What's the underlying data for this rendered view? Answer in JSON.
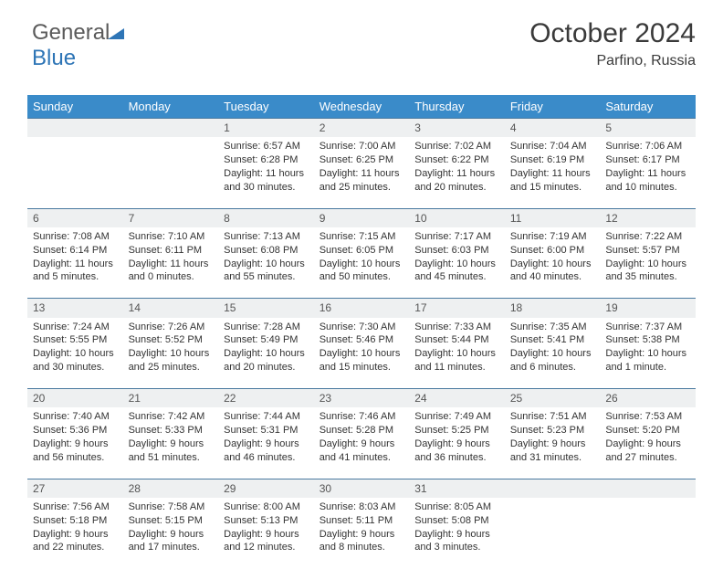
{
  "brand": {
    "part1": "General",
    "part2": "Blue"
  },
  "header": {
    "month_year": "October 2024",
    "location": "Parfino, Russia"
  },
  "colors": {
    "header_bg": "#3a8bc9",
    "header_text": "#ffffff",
    "daynum_bg": "#eef0f1",
    "border": "#4a7aa0",
    "text": "#333333",
    "background": "#ffffff"
  },
  "day_headers": [
    "Sunday",
    "Monday",
    "Tuesday",
    "Wednesday",
    "Thursday",
    "Friday",
    "Saturday"
  ],
  "weeks": [
    [
      {
        "day": "",
        "lines": []
      },
      {
        "day": "",
        "lines": []
      },
      {
        "day": "1",
        "lines": [
          "Sunrise: 6:57 AM",
          "Sunset: 6:28 PM",
          "Daylight: 11 hours",
          "and 30 minutes."
        ]
      },
      {
        "day": "2",
        "lines": [
          "Sunrise: 7:00 AM",
          "Sunset: 6:25 PM",
          "Daylight: 11 hours",
          "and 25 minutes."
        ]
      },
      {
        "day": "3",
        "lines": [
          "Sunrise: 7:02 AM",
          "Sunset: 6:22 PM",
          "Daylight: 11 hours",
          "and 20 minutes."
        ]
      },
      {
        "day": "4",
        "lines": [
          "Sunrise: 7:04 AM",
          "Sunset: 6:19 PM",
          "Daylight: 11 hours",
          "and 15 minutes."
        ]
      },
      {
        "day": "5",
        "lines": [
          "Sunrise: 7:06 AM",
          "Sunset: 6:17 PM",
          "Daylight: 11 hours",
          "and 10 minutes."
        ]
      }
    ],
    [
      {
        "day": "6",
        "lines": [
          "Sunrise: 7:08 AM",
          "Sunset: 6:14 PM",
          "Daylight: 11 hours",
          "and 5 minutes."
        ]
      },
      {
        "day": "7",
        "lines": [
          "Sunrise: 7:10 AM",
          "Sunset: 6:11 PM",
          "Daylight: 11 hours",
          "and 0 minutes."
        ]
      },
      {
        "day": "8",
        "lines": [
          "Sunrise: 7:13 AM",
          "Sunset: 6:08 PM",
          "Daylight: 10 hours",
          "and 55 minutes."
        ]
      },
      {
        "day": "9",
        "lines": [
          "Sunrise: 7:15 AM",
          "Sunset: 6:05 PM",
          "Daylight: 10 hours",
          "and 50 minutes."
        ]
      },
      {
        "day": "10",
        "lines": [
          "Sunrise: 7:17 AM",
          "Sunset: 6:03 PM",
          "Daylight: 10 hours",
          "and 45 minutes."
        ]
      },
      {
        "day": "11",
        "lines": [
          "Sunrise: 7:19 AM",
          "Sunset: 6:00 PM",
          "Daylight: 10 hours",
          "and 40 minutes."
        ]
      },
      {
        "day": "12",
        "lines": [
          "Sunrise: 7:22 AM",
          "Sunset: 5:57 PM",
          "Daylight: 10 hours",
          "and 35 minutes."
        ]
      }
    ],
    [
      {
        "day": "13",
        "lines": [
          "Sunrise: 7:24 AM",
          "Sunset: 5:55 PM",
          "Daylight: 10 hours",
          "and 30 minutes."
        ]
      },
      {
        "day": "14",
        "lines": [
          "Sunrise: 7:26 AM",
          "Sunset: 5:52 PM",
          "Daylight: 10 hours",
          "and 25 minutes."
        ]
      },
      {
        "day": "15",
        "lines": [
          "Sunrise: 7:28 AM",
          "Sunset: 5:49 PM",
          "Daylight: 10 hours",
          "and 20 minutes."
        ]
      },
      {
        "day": "16",
        "lines": [
          "Sunrise: 7:30 AM",
          "Sunset: 5:46 PM",
          "Daylight: 10 hours",
          "and 15 minutes."
        ]
      },
      {
        "day": "17",
        "lines": [
          "Sunrise: 7:33 AM",
          "Sunset: 5:44 PM",
          "Daylight: 10 hours",
          "and 11 minutes."
        ]
      },
      {
        "day": "18",
        "lines": [
          "Sunrise: 7:35 AM",
          "Sunset: 5:41 PM",
          "Daylight: 10 hours",
          "and 6 minutes."
        ]
      },
      {
        "day": "19",
        "lines": [
          "Sunrise: 7:37 AM",
          "Sunset: 5:38 PM",
          "Daylight: 10 hours",
          "and 1 minute."
        ]
      }
    ],
    [
      {
        "day": "20",
        "lines": [
          "Sunrise: 7:40 AM",
          "Sunset: 5:36 PM",
          "Daylight: 9 hours",
          "and 56 minutes."
        ]
      },
      {
        "day": "21",
        "lines": [
          "Sunrise: 7:42 AM",
          "Sunset: 5:33 PM",
          "Daylight: 9 hours",
          "and 51 minutes."
        ]
      },
      {
        "day": "22",
        "lines": [
          "Sunrise: 7:44 AM",
          "Sunset: 5:31 PM",
          "Daylight: 9 hours",
          "and 46 minutes."
        ]
      },
      {
        "day": "23",
        "lines": [
          "Sunrise: 7:46 AM",
          "Sunset: 5:28 PM",
          "Daylight: 9 hours",
          "and 41 minutes."
        ]
      },
      {
        "day": "24",
        "lines": [
          "Sunrise: 7:49 AM",
          "Sunset: 5:25 PM",
          "Daylight: 9 hours",
          "and 36 minutes."
        ]
      },
      {
        "day": "25",
        "lines": [
          "Sunrise: 7:51 AM",
          "Sunset: 5:23 PM",
          "Daylight: 9 hours",
          "and 31 minutes."
        ]
      },
      {
        "day": "26",
        "lines": [
          "Sunrise: 7:53 AM",
          "Sunset: 5:20 PM",
          "Daylight: 9 hours",
          "and 27 minutes."
        ]
      }
    ],
    [
      {
        "day": "27",
        "lines": [
          "Sunrise: 7:56 AM",
          "Sunset: 5:18 PM",
          "Daylight: 9 hours",
          "and 22 minutes."
        ]
      },
      {
        "day": "28",
        "lines": [
          "Sunrise: 7:58 AM",
          "Sunset: 5:15 PM",
          "Daylight: 9 hours",
          "and 17 minutes."
        ]
      },
      {
        "day": "29",
        "lines": [
          "Sunrise: 8:00 AM",
          "Sunset: 5:13 PM",
          "Daylight: 9 hours",
          "and 12 minutes."
        ]
      },
      {
        "day": "30",
        "lines": [
          "Sunrise: 8:03 AM",
          "Sunset: 5:11 PM",
          "Daylight: 9 hours",
          "and 8 minutes."
        ]
      },
      {
        "day": "31",
        "lines": [
          "Sunrise: 8:05 AM",
          "Sunset: 5:08 PM",
          "Daylight: 9 hours",
          "and 3 minutes."
        ]
      },
      {
        "day": "",
        "lines": []
      },
      {
        "day": "",
        "lines": []
      }
    ]
  ]
}
